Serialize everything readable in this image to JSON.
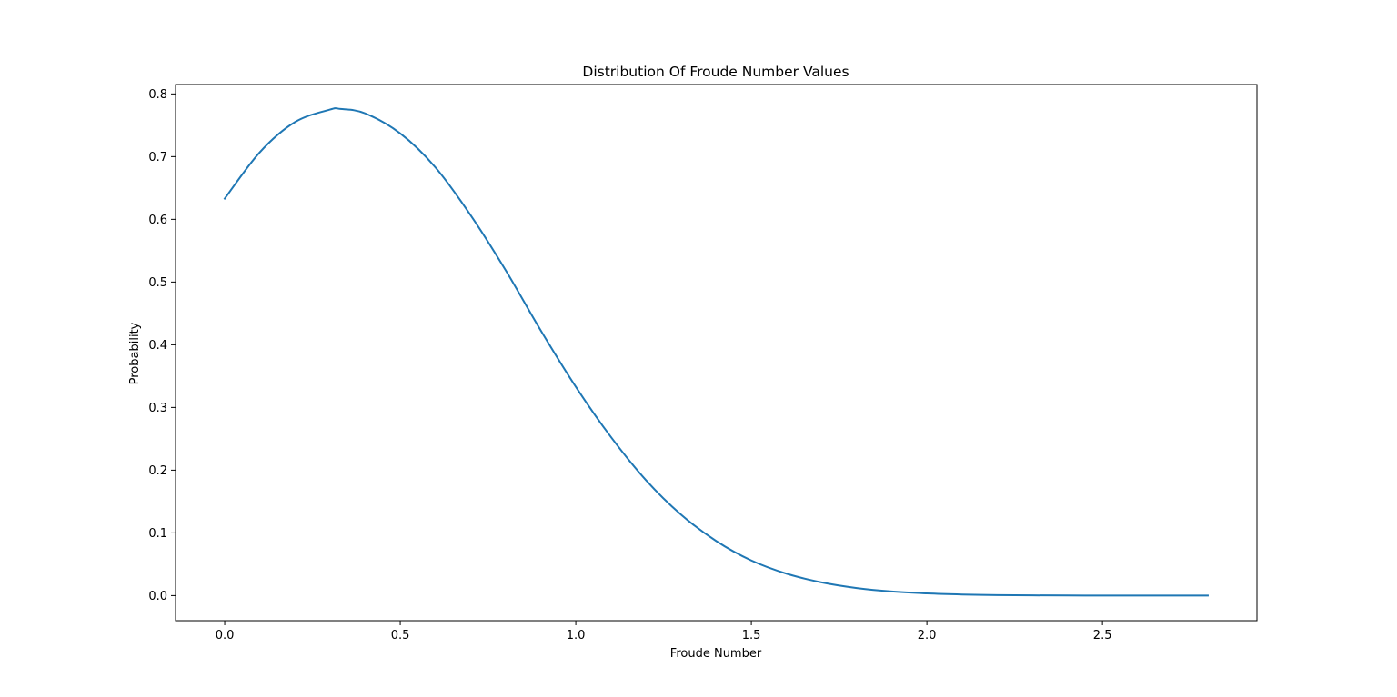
{
  "chart_data": {
    "type": "line",
    "title": "Distribution Of Froude Number Values",
    "xlabel": "Froude Number",
    "ylabel": "Probability",
    "xlim": [
      -0.14,
      2.94
    ],
    "ylim": [
      -0.04,
      0.815
    ],
    "grid": false,
    "xticks": [
      0.0,
      0.5,
      1.0,
      1.5,
      2.0,
      2.5
    ],
    "xtick_labels": [
      "0.0",
      "0.5",
      "1.0",
      "1.5",
      "2.0",
      "2.5"
    ],
    "yticks": [
      0.0,
      0.1,
      0.2,
      0.3,
      0.4,
      0.5,
      0.6,
      0.7,
      0.8
    ],
    "ytick_labels": [
      "0.0",
      "0.1",
      "0.2",
      "0.3",
      "0.4",
      "0.5",
      "0.6",
      "0.7",
      "0.8"
    ],
    "series": [
      {
        "color": "#1f77b4",
        "x": [
          0.0,
          0.1,
          0.2,
          0.3,
          0.33,
          0.4,
          0.5,
          0.6,
          0.7,
          0.8,
          0.9,
          1.0,
          1.1,
          1.2,
          1.3,
          1.4,
          1.5,
          1.6,
          1.7,
          1.8,
          1.9,
          2.0,
          2.1,
          2.2,
          2.3,
          2.4,
          2.5,
          2.6,
          2.7,
          2.8
        ],
        "y": [
          0.633,
          0.707,
          0.755,
          0.775,
          0.776,
          0.769,
          0.737,
          0.683,
          0.607,
          0.519,
          0.423,
          0.333,
          0.253,
          0.184,
          0.129,
          0.087,
          0.056,
          0.035,
          0.021,
          0.012,
          0.0065,
          0.0034,
          0.0017,
          0.0008,
          0.00035,
          0.00015,
          6e-05,
          2e-05,
          1e-05,
          0.0
        ]
      }
    ]
  }
}
